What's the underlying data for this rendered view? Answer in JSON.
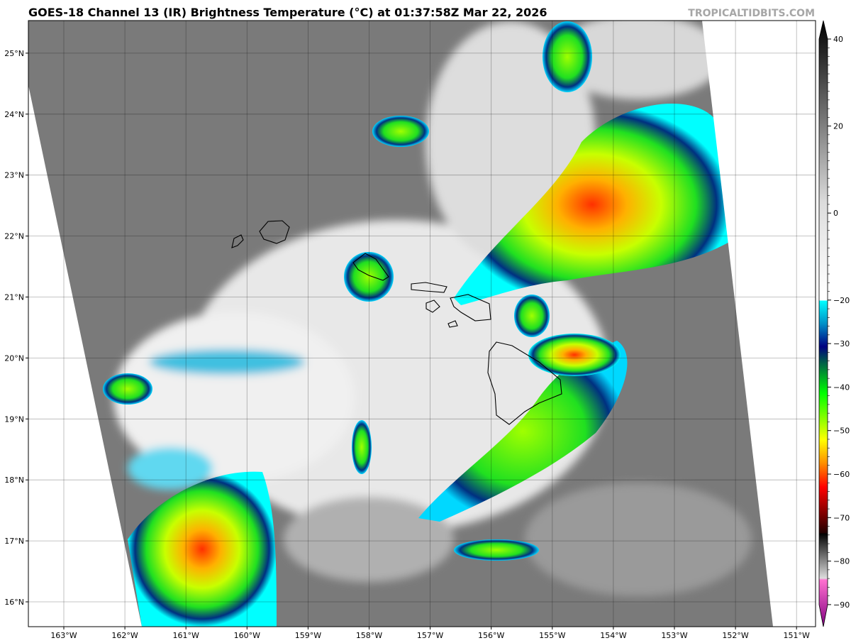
{
  "title": "GOES-18 Channel 13 (IR) Brightness Temperature (°C) at 01:37:58Z Mar 22, 2026",
  "watermark": "TROPICALTIDBITS.COM",
  "map": {
    "lon_ticks": [
      "163°W",
      "162°W",
      "161°W",
      "160°W",
      "159°W",
      "158°W",
      "157°W",
      "156°W",
      "155°W",
      "154°W",
      "153°W",
      "152°W",
      "151°W"
    ],
    "lat_ticks": [
      "16°N",
      "17°N",
      "18°N",
      "19°N",
      "20°N",
      "21°N",
      "22°N",
      "23°N",
      "24°N",
      "25°N"
    ],
    "lon_range": [
      -163.6,
      -150.7
    ],
    "lat_range": [
      15.6,
      25.5
    ],
    "grid": true
  },
  "colorbar": {
    "ticks": [
      "40",
      "20",
      "0",
      "−20",
      "−30",
      "−40",
      "−50",
      "−60",
      "−70",
      "−80",
      "−90"
    ],
    "tick_values": [
      40,
      20,
      0,
      -20,
      -30,
      -40,
      -50,
      -60,
      -70,
      -80,
      -90
    ],
    "range": [
      -90,
      40
    ],
    "colors": {
      "warm": "#000000",
      "mid": "#dddddd",
      "cyan": "#00ffff",
      "navy": "#000080",
      "green": "#00ff00",
      "yellow": "#ffff00",
      "orange": "#ff9000",
      "red": "#ff0000",
      "pink": "#ff70d0",
      "purple": "#800080"
    }
  }
}
